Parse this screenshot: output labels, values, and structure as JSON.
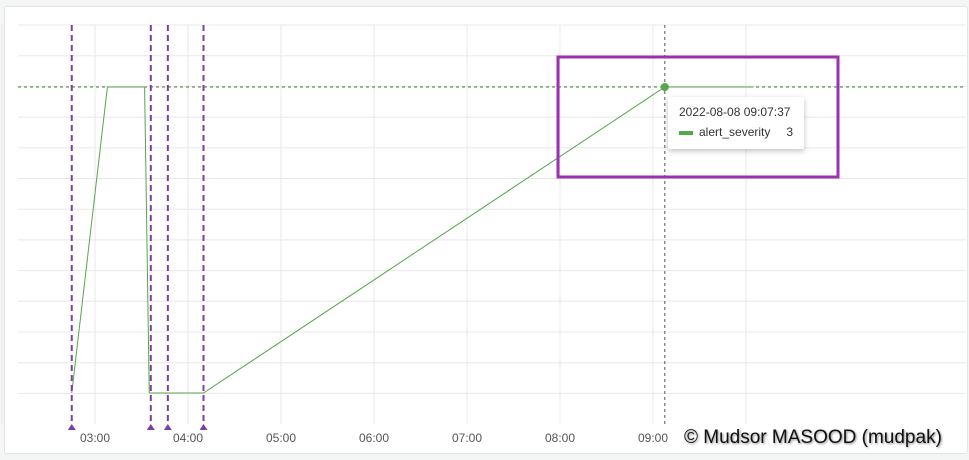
{
  "chart_data": {
    "type": "line",
    "x_ticks": [
      "03:00",
      "04:00",
      "05:00",
      "06:00",
      "07:00",
      "08:00",
      "09:00"
    ],
    "series": [
      {
        "name": "alert_severity",
        "color": "#56a64b",
        "points": [
          [
            "02:45",
            0
          ],
          [
            "03:08",
            3
          ],
          [
            "03:32",
            3
          ],
          [
            "03:35",
            0
          ],
          [
            "04:10",
            0
          ],
          [
            "09:07:37",
            3
          ],
          [
            "10:05",
            3
          ]
        ]
      }
    ],
    "annotations": [
      "02:45",
      "03:36",
      "03:47",
      "04:10"
    ],
    "annotation_color": "#7b3fa0",
    "ylim": [
      0,
      3.6
    ],
    "grid": true,
    "threshold_line": 3
  },
  "tooltip": {
    "time": "2022-08-08 09:07:37",
    "series": "alert_severity",
    "value": "3"
  },
  "highlight_color": "#9b30b0",
  "watermark": "© Mudsor MASOOD (mudpak)",
  "copyright": "© Mudsor MASOOD (mudpak)"
}
